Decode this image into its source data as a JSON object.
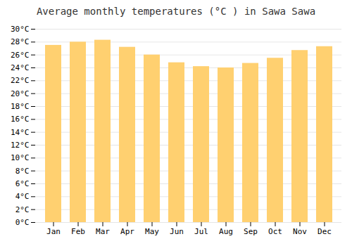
{
  "chart_data": {
    "type": "bar",
    "title": "Average monthly temperatures (°C ) in Sawa Sawa",
    "categories": [
      "Jan",
      "Feb",
      "Mar",
      "Apr",
      "May",
      "Jun",
      "Jul",
      "Aug",
      "Sep",
      "Oct",
      "Nov",
      "Dec"
    ],
    "values": [
      27.5,
      28.0,
      28.3,
      27.2,
      26.0,
      24.8,
      24.2,
      24.0,
      24.7,
      25.5,
      26.7,
      27.3
    ],
    "color": "#FFD070",
    "ylim": [
      0,
      30
    ],
    "yticks": [
      {
        "value": 0,
        "label": "0°C"
      },
      {
        "value": 2,
        "label": "2°C"
      },
      {
        "value": 4,
        "label": "4°C"
      },
      {
        "value": 6,
        "label": "6°C"
      },
      {
        "value": 8,
        "label": "8°C"
      },
      {
        "value": 10,
        "label": "10°C"
      },
      {
        "value": 12,
        "label": "12°C"
      },
      {
        "value": 14,
        "label": "14°C"
      },
      {
        "value": 16,
        "label": "16°C"
      },
      {
        "value": 18,
        "label": "18°C"
      },
      {
        "value": 20,
        "label": "20°C"
      },
      {
        "value": 22,
        "label": "22°C"
      },
      {
        "value": 24,
        "label": "24°C"
      },
      {
        "value": 26,
        "label": "26°C"
      },
      {
        "value": 28,
        "label": "28°C"
      },
      {
        "value": 30,
        "label": "30°C"
      }
    ],
    "grid": true
  }
}
